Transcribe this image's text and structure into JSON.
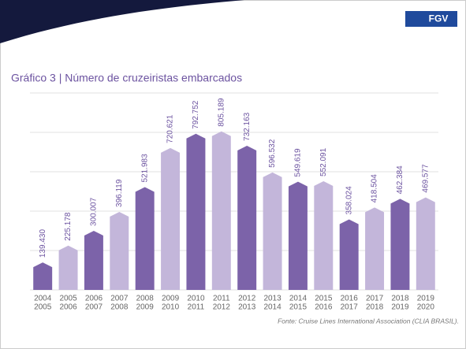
{
  "logo": "FGV",
  "chart_data": {
    "type": "bar",
    "title": "Gráfico 3 | Número de cruzeiristas embarcados",
    "source": "Fonte: Cruise Lines International Association (CLIA BRASIL).",
    "categories": [
      [
        "2004",
        "2005"
      ],
      [
        "2005",
        "2006"
      ],
      [
        "2006",
        "2007"
      ],
      [
        "2007",
        "2008"
      ],
      [
        "2008",
        "2009"
      ],
      [
        "2009",
        "2010"
      ],
      [
        "2010",
        "2011"
      ],
      [
        "2011",
        "2012"
      ],
      [
        "2012",
        "2013"
      ],
      [
        "2013",
        "2014"
      ],
      [
        "2014",
        "2015"
      ],
      [
        "2015",
        "2016"
      ],
      [
        "2016",
        "2017"
      ],
      [
        "2017",
        "2018"
      ],
      [
        "2018",
        "2019"
      ],
      [
        "2019",
        "2020"
      ]
    ],
    "values": [
      139430,
      225178,
      300007,
      396119,
      521983,
      720621,
      792752,
      805189,
      732163,
      596532,
      549619,
      552091,
      358024,
      418504,
      462384,
      469577
    ],
    "value_labels": [
      "139.430",
      "225.178",
      "300.007",
      "396.119",
      "521.983",
      "720.621",
      "792.752",
      "805.189",
      "732.163",
      "596.532",
      "549.619",
      "552.091",
      "358.024",
      "418.504",
      "462.384",
      "469.577"
    ],
    "colors": [
      "#7c63a9",
      "#c3b6da"
    ],
    "ylim": [
      0,
      1000000
    ],
    "yticks": [
      0,
      200000,
      400000,
      600000,
      800000,
      1000000
    ],
    "grid": true
  }
}
